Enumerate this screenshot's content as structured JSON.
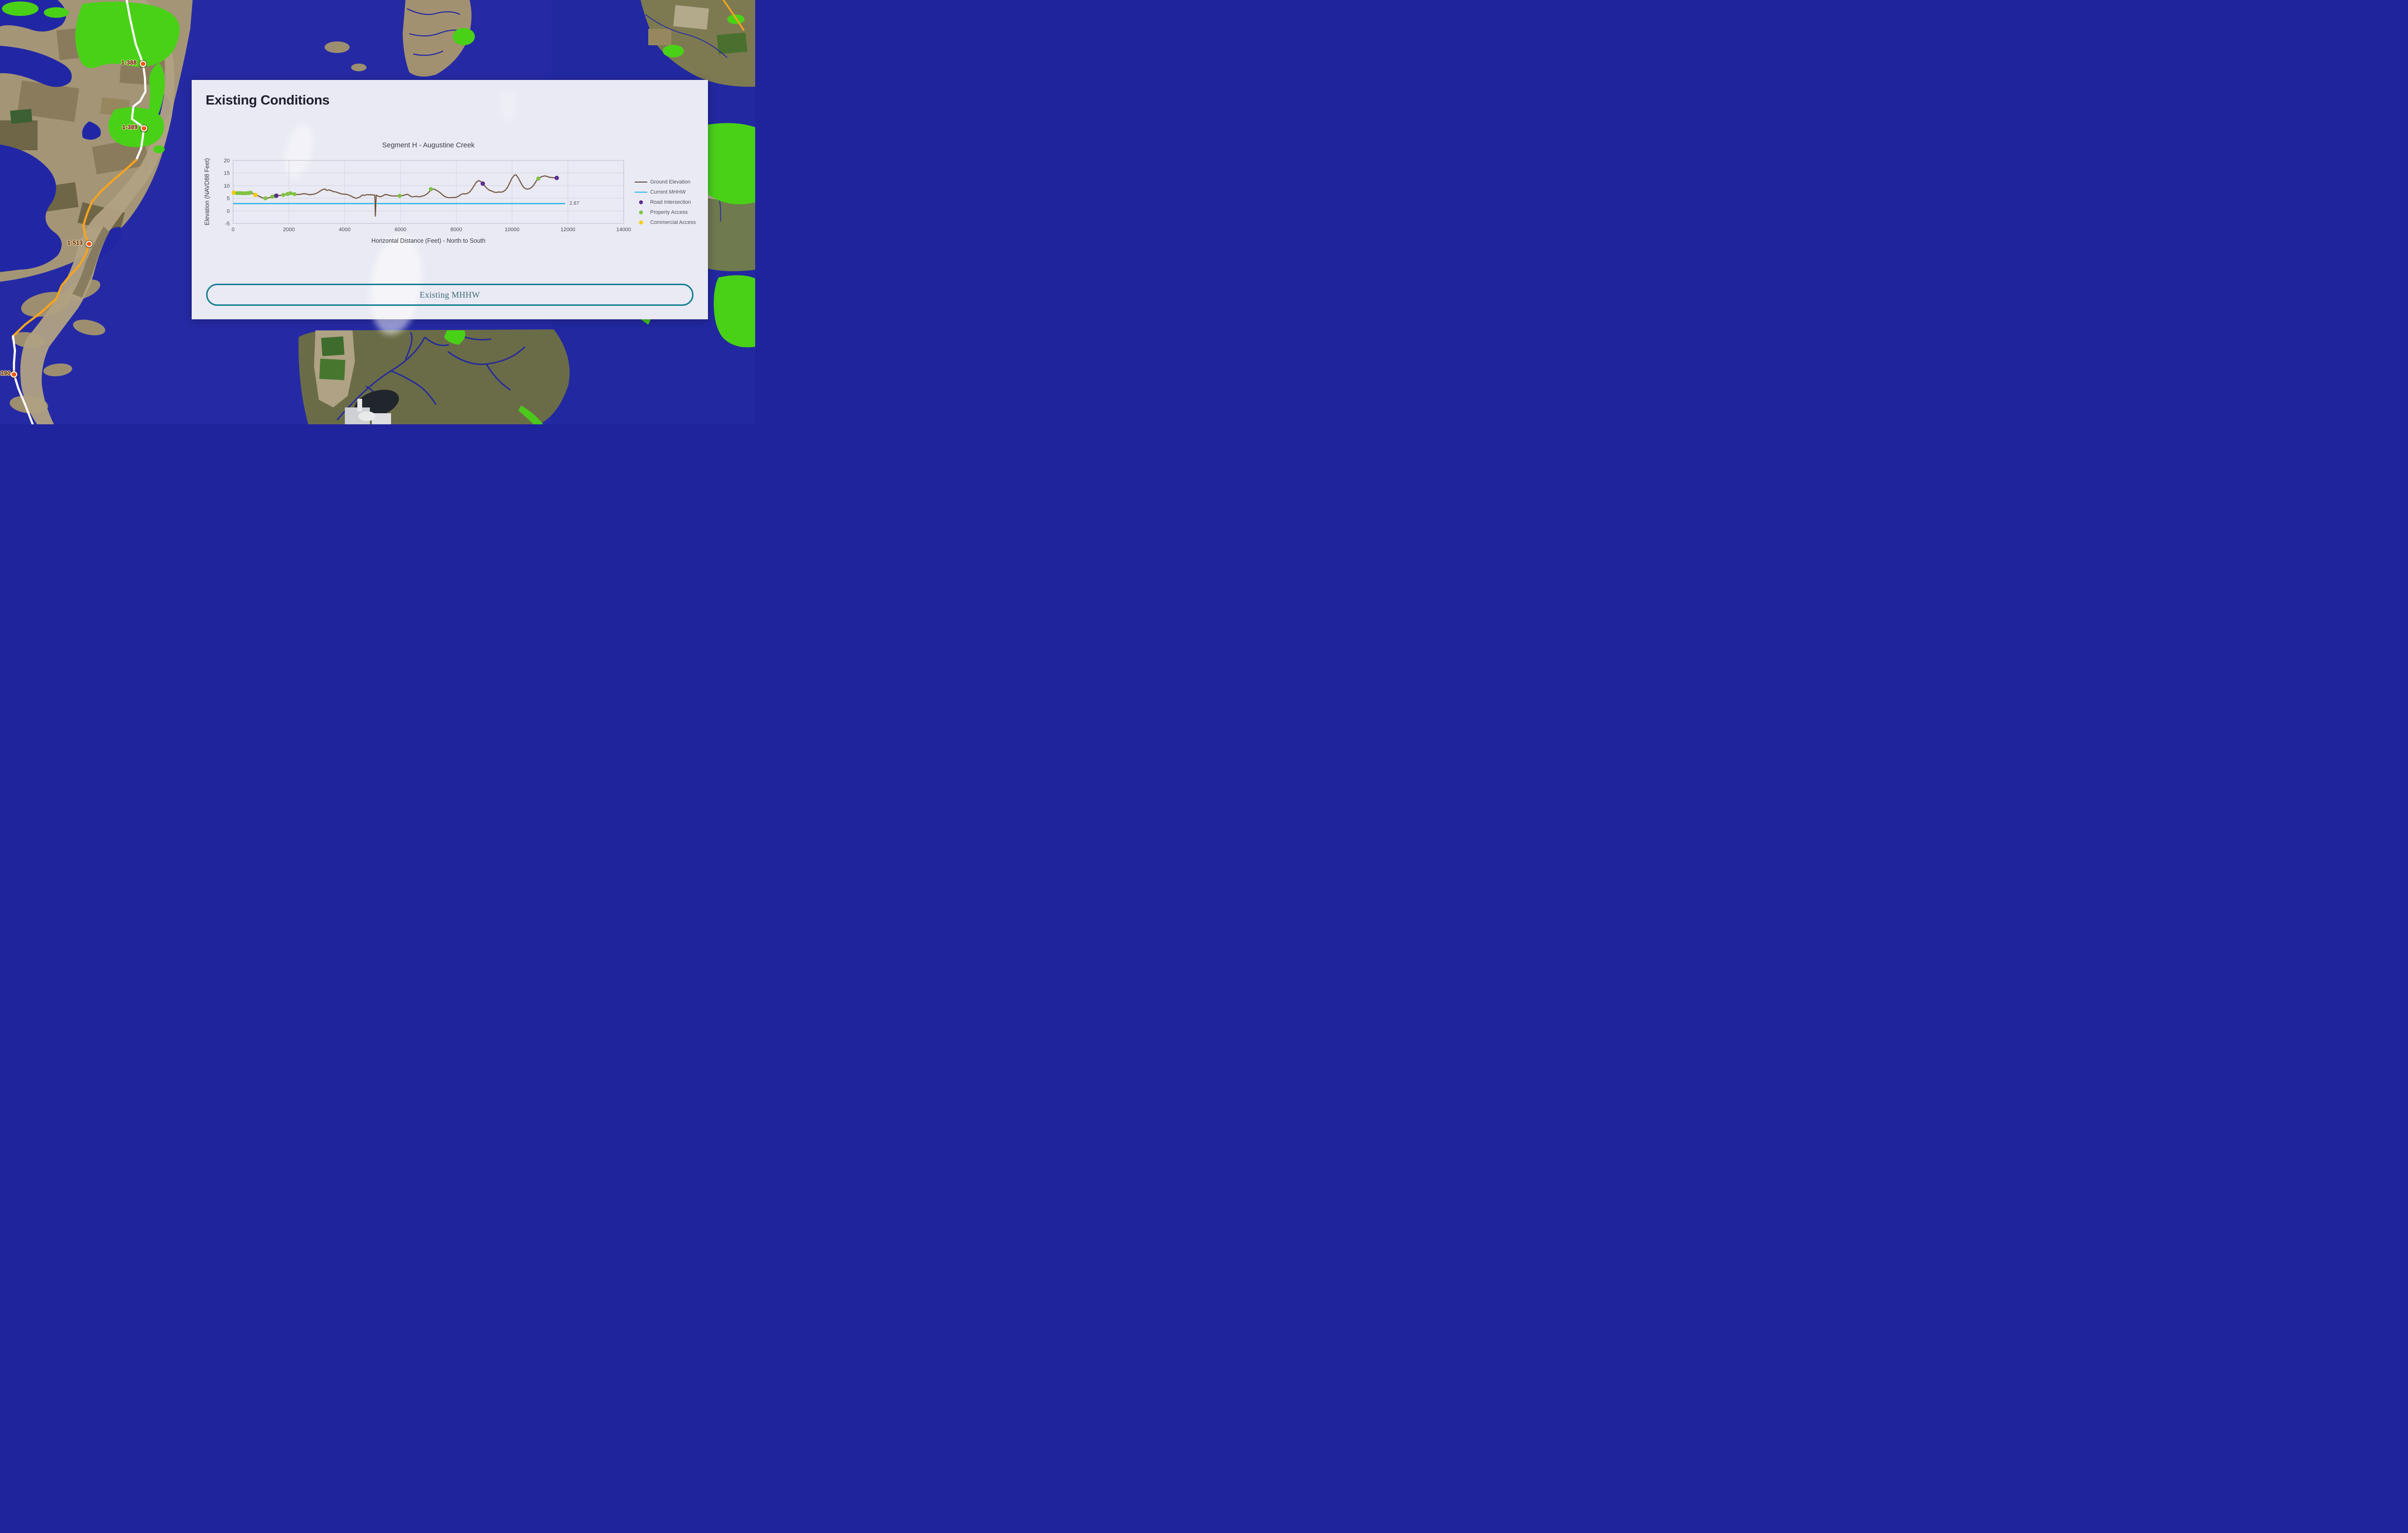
{
  "colors": {
    "water_blue": "#252aa4",
    "flood_green": "#49d117",
    "route_white": "#ffffff",
    "route_orange": "#f6a41f",
    "marker_orange": "#f05a14",
    "panel_bg": "#e9eaf3",
    "button_teal": "#177d92",
    "ground_line": "#5d4a42",
    "mhhw_line": "#29b7e8",
    "road_purple": "#5c2d91",
    "property_green": "#7fc241",
    "commercial_yellow": "#f2cb05"
  },
  "map": {
    "markers": [
      {
        "label": "1-388"
      },
      {
        "label": "1-389"
      },
      {
        "label": "1-513"
      },
      {
        "label": "390"
      }
    ]
  },
  "panel": {
    "title": "Existing Conditions",
    "button_label": "Existing MHHW"
  },
  "chart_data": {
    "type": "line",
    "title": "Segment H - Augustine Creek",
    "xlabel": "Horizontal Distance (Feet) - North to South",
    "ylabel": "Elevation (NAVD88 Feet)",
    "xlim": [
      0,
      14000
    ],
    "ylim": [
      -5,
      20
    ],
    "xticks": [
      0,
      2000,
      4000,
      6000,
      8000,
      10000,
      12000,
      14000
    ],
    "yticks": [
      20,
      15,
      10,
      5,
      0,
      -5
    ],
    "grid": true,
    "legend_position": "right",
    "series": [
      {
        "name": "Ground Elevation",
        "points": [
          [
            0,
            7.2
          ],
          [
            80,
            7.1
          ],
          [
            160,
            7.0
          ],
          [
            240,
            7.05
          ],
          [
            320,
            7.0
          ],
          [
            400,
            6.9
          ],
          [
            480,
            7.0
          ],
          [
            560,
            7.05
          ],
          [
            640,
            7.25
          ],
          [
            700,
            6.95
          ],
          [
            760,
            6.6
          ],
          [
            840,
            6.2
          ],
          [
            920,
            5.85
          ],
          [
            1000,
            5.4
          ],
          [
            1080,
            5.05
          ],
          [
            1160,
            4.95
          ],
          [
            1240,
            5.05
          ],
          [
            1320,
            5.3
          ],
          [
            1400,
            5.6
          ],
          [
            1480,
            5.8
          ],
          [
            1560,
            6.0
          ],
          [
            1640,
            6.1
          ],
          [
            1720,
            6.15
          ],
          [
            1800,
            6.3
          ],
          [
            1880,
            6.5
          ],
          [
            1960,
            6.7
          ],
          [
            2040,
            6.95
          ],
          [
            2100,
            7.1
          ],
          [
            2180,
            6.8
          ],
          [
            2260,
            6.5
          ],
          [
            2340,
            6.45
          ],
          [
            2420,
            6.6
          ],
          [
            2500,
            6.75
          ],
          [
            2580,
            6.8
          ],
          [
            2660,
            6.6
          ],
          [
            2740,
            6.4
          ],
          [
            2820,
            6.5
          ],
          [
            2900,
            6.65
          ],
          [
            2980,
            6.9
          ],
          [
            3060,
            7.4
          ],
          [
            3140,
            8.0
          ],
          [
            3220,
            8.5
          ],
          [
            3300,
            8.6
          ],
          [
            3360,
            8.1
          ],
          [
            3440,
            8.3
          ],
          [
            3520,
            8.0
          ],
          [
            3600,
            7.6
          ],
          [
            3680,
            7.5
          ],
          [
            3760,
            7.2
          ],
          [
            3840,
            6.9
          ],
          [
            3920,
            6.65
          ],
          [
            4000,
            6.6
          ],
          [
            4080,
            6.5
          ],
          [
            4160,
            6.2
          ],
          [
            4240,
            5.8
          ],
          [
            4320,
            5.3
          ],
          [
            4400,
            5.0
          ],
          [
            4480,
            5.2
          ],
          [
            4560,
            5.6
          ],
          [
            4640,
            6.3
          ],
          [
            4700,
            6.1
          ],
          [
            4780,
            6.4
          ],
          [
            4860,
            6.35
          ],
          [
            4940,
            6.4
          ],
          [
            5020,
            6.3
          ],
          [
            5080,
            6.25
          ],
          [
            5100,
            -2.1
          ],
          [
            5130,
            6.2
          ],
          [
            5200,
            5.8
          ],
          [
            5280,
            5.6
          ],
          [
            5360,
            5.9
          ],
          [
            5440,
            6.45
          ],
          [
            5520,
            6.4
          ],
          [
            5600,
            6.15
          ],
          [
            5680,
            5.95
          ],
          [
            5760,
            5.9
          ],
          [
            5840,
            5.9
          ],
          [
            5920,
            5.95
          ],
          [
            6000,
            6.0
          ],
          [
            6080,
            6.05
          ],
          [
            6160,
            6.3
          ],
          [
            6240,
            6.6
          ],
          [
            6320,
            6.1
          ],
          [
            6400,
            5.6
          ],
          [
            6480,
            5.6
          ],
          [
            6560,
            5.8
          ],
          [
            6640,
            5.6
          ],
          [
            6720,
            5.65
          ],
          [
            6800,
            5.9
          ],
          [
            6880,
            6.2
          ],
          [
            6960,
            6.8
          ],
          [
            7040,
            7.7
          ],
          [
            7120,
            8.6
          ],
          [
            7200,
            8.6
          ],
          [
            7280,
            8.2
          ],
          [
            7360,
            7.7
          ],
          [
            7440,
            7.0
          ],
          [
            7520,
            6.2
          ],
          [
            7600,
            5.6
          ],
          [
            7680,
            5.3
          ],
          [
            7760,
            5.2
          ],
          [
            7840,
            5.3
          ],
          [
            7920,
            5.25
          ],
          [
            8000,
            5.4
          ],
          [
            8080,
            5.8
          ],
          [
            8160,
            6.4
          ],
          [
            8240,
            6.8
          ],
          [
            8320,
            6.7
          ],
          [
            8400,
            6.9
          ],
          [
            8480,
            7.5
          ],
          [
            8560,
            8.6
          ],
          [
            8640,
            10.0
          ],
          [
            8720,
            11.4
          ],
          [
            8800,
            12.0
          ],
          [
            8880,
            11.6
          ],
          [
            8960,
            10.7
          ],
          [
            9040,
            9.6
          ],
          [
            9120,
            8.7
          ],
          [
            9200,
            8.1
          ],
          [
            9280,
            7.8
          ],
          [
            9360,
            7.4
          ],
          [
            9440,
            7.3
          ],
          [
            9520,
            7.5
          ],
          [
            9600,
            7.4
          ],
          [
            9680,
            7.6
          ],
          [
            9760,
            8.2
          ],
          [
            9840,
            9.4
          ],
          [
            9920,
            11.2
          ],
          [
            10000,
            13.0
          ],
          [
            10080,
            14.1
          ],
          [
            10140,
            14.3
          ],
          [
            10220,
            13.1
          ],
          [
            10300,
            11.4
          ],
          [
            10380,
            9.8
          ],
          [
            10460,
            8.9
          ],
          [
            10540,
            8.6
          ],
          [
            10620,
            8.75
          ],
          [
            10700,
            9.3
          ],
          [
            10780,
            10.3
          ],
          [
            10860,
            11.7
          ],
          [
            10940,
            12.8
          ],
          [
            11020,
            13.3
          ],
          [
            11100,
            13.7
          ],
          [
            11180,
            13.85
          ],
          [
            11260,
            13.6
          ],
          [
            11340,
            13.3
          ],
          [
            11420,
            13.2
          ],
          [
            11500,
            13.1
          ],
          [
            11600,
            13.05
          ]
        ]
      }
    ],
    "mhhw": {
      "name": "Current MHHW",
      "value": 2.87,
      "label": "2.87",
      "x_start": 0,
      "x_end": 11900
    },
    "point_markers": {
      "road_intersection": [
        [
          1550,
          6.0
        ],
        [
          8950,
          10.8
        ],
        [
          11600,
          13.05
        ]
      ],
      "property_access": [
        [
          150,
          7.0
        ],
        [
          250,
          7.05
        ],
        [
          350,
          6.95
        ],
        [
          460,
          7.0
        ],
        [
          560,
          7.05
        ],
        [
          630,
          7.2
        ],
        [
          1160,
          4.95
        ],
        [
          1400,
          5.6
        ],
        [
          1500,
          5.85
        ],
        [
          1800,
          6.3
        ],
        [
          1950,
          6.68
        ],
        [
          2060,
          6.95
        ],
        [
          2200,
          6.6
        ],
        [
          5970,
          5.95
        ],
        [
          7090,
          8.6
        ],
        [
          10940,
          12.8
        ]
      ],
      "commercial_access": [
        [
          30,
          7.2
        ],
        [
          800,
          6.3
        ]
      ]
    },
    "legend": [
      {
        "label": "Ground Elevation",
        "type": "line",
        "color": "#5d4a42"
      },
      {
        "label": "Current MHHW",
        "type": "line",
        "color": "#29b7e8"
      },
      {
        "label": "Road Intersection",
        "type": "dot",
        "color": "#5c2d91"
      },
      {
        "label": "Property Access",
        "type": "dot",
        "color": "#7fc241"
      },
      {
        "label": "Commercial Access",
        "type": "dot",
        "color": "#f2cb05"
      }
    ]
  }
}
